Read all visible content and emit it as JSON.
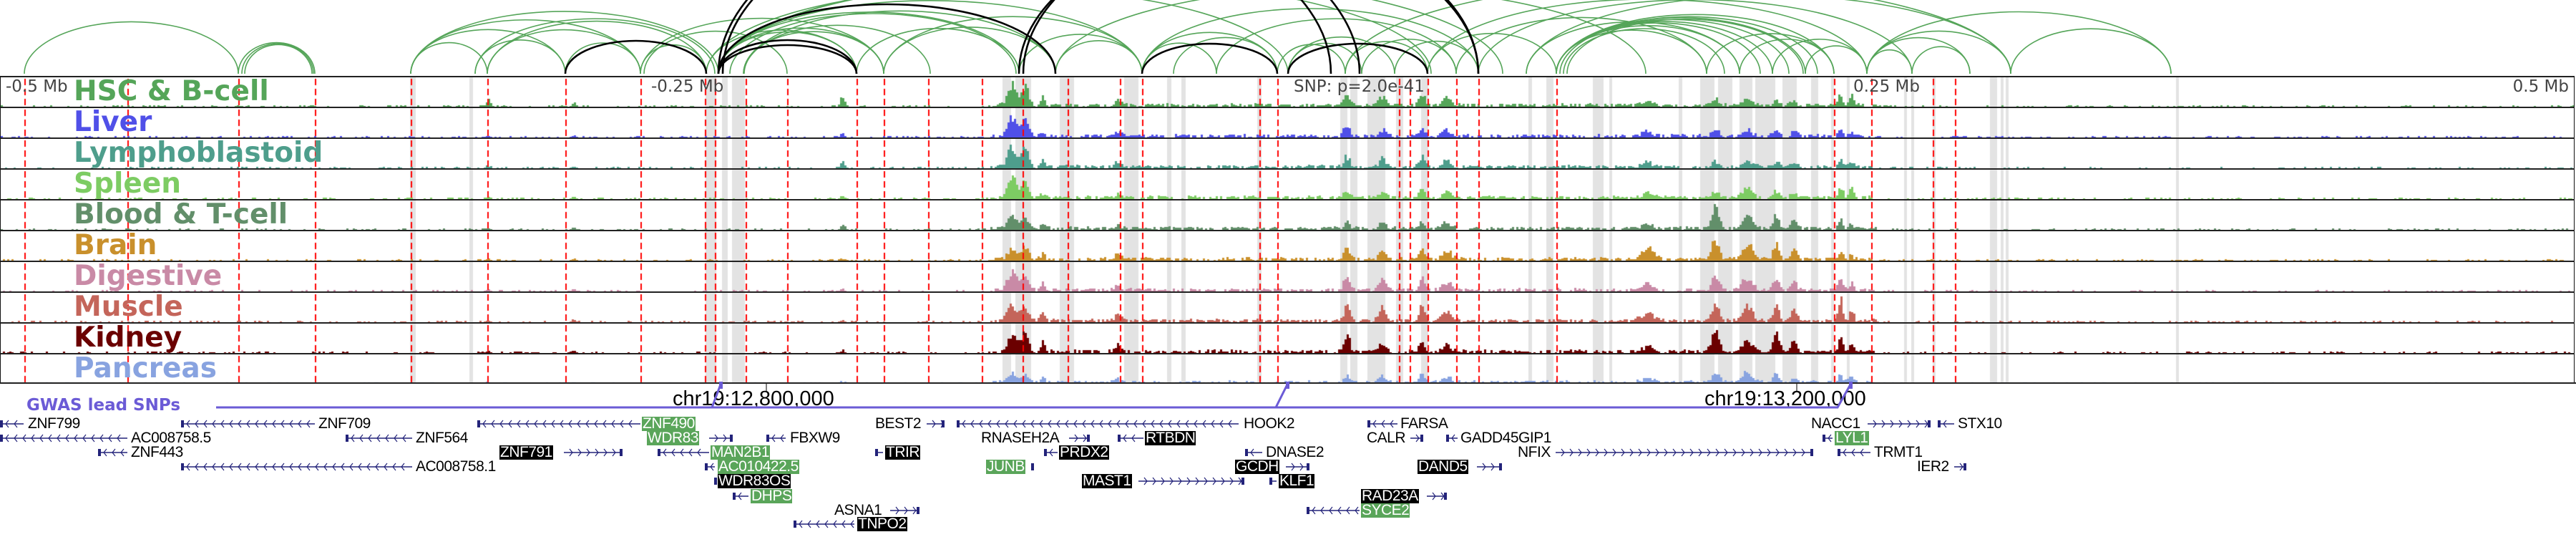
{
  "axis": {
    "left": "-0.5 Mb",
    "left_mid": "-0.25 Mb",
    "snp": "SNP: p=2.0e-41",
    "right_mid": "0.25 Mb",
    "right": "0.5 Mb"
  },
  "tracks": [
    {
      "name": "HSC & B-cell",
      "color": "#55a559"
    },
    {
      "name": "Liver",
      "color": "#5050e8"
    },
    {
      "name": "Lymphoblastoid",
      "color": "#4e9e8c"
    },
    {
      "name": "Spleen",
      "color": "#7dcc63"
    },
    {
      "name": "Blood & T-cell",
      "color": "#628f6a"
    },
    {
      "name": "Brain",
      "color": "#c9902c"
    },
    {
      "name": "Digestive",
      "color": "#c98aa6"
    },
    {
      "name": "Muscle",
      "color": "#c4655a"
    },
    {
      "name": "Kidney",
      "color": "#6b0000"
    },
    {
      "name": "Pancreas",
      "color": "#88a3e0"
    }
  ],
  "gwas": {
    "label": "GWAS lead SNPs",
    "color": "#6b5bd6"
  },
  "coordinates": [
    "chr19:12,800,000",
    "chr19:13,200,000"
  ],
  "colors": {
    "loop": "#55a559",
    "loop_strong": "#000000",
    "snp_line": "#ff0000",
    "gene": "#23237a",
    "highlight_green": "#5aa55a"
  },
  "genes": [
    {
      "label": "ZNF799",
      "highlight": "none"
    },
    {
      "label": "AC008758.5",
      "highlight": "none"
    },
    {
      "label": "ZNF443",
      "highlight": "none"
    },
    {
      "label": "ZNF709",
      "highlight": "none"
    },
    {
      "label": "ZNF564",
      "highlight": "none"
    },
    {
      "label": "AC008758.1",
      "highlight": "none"
    },
    {
      "label": "ZNF490",
      "highlight": "green"
    },
    {
      "label": "WDR83",
      "highlight": "green"
    },
    {
      "label": "ZNF791",
      "highlight": "black"
    },
    {
      "label": "MAN2B1",
      "highlight": "green"
    },
    {
      "label": "AC010422.5",
      "highlight": "green"
    },
    {
      "label": "WDR83OS",
      "highlight": "black"
    },
    {
      "label": "DHPS",
      "highlight": "green"
    },
    {
      "label": "FBXW9",
      "highlight": "none"
    },
    {
      "label": "BEST2",
      "highlight": "none"
    },
    {
      "label": "TRIR",
      "highlight": "black"
    },
    {
      "label": "ASNA1",
      "highlight": "none"
    },
    {
      "label": "TNPO2",
      "highlight": "black"
    },
    {
      "label": "HOOK2",
      "highlight": "none"
    },
    {
      "label": "RNASEH2A",
      "highlight": "none"
    },
    {
      "label": "RTBDN",
      "highlight": "black"
    },
    {
      "label": "PRDX2",
      "highlight": "black"
    },
    {
      "label": "JUNB",
      "highlight": "green"
    },
    {
      "label": "MAST1",
      "highlight": "black"
    },
    {
      "label": "DNASE2",
      "highlight": "none"
    },
    {
      "label": "GCDH",
      "highlight": "black"
    },
    {
      "label": "KLF1",
      "highlight": "black"
    },
    {
      "label": "FARSA",
      "highlight": "none"
    },
    {
      "label": "CALR",
      "highlight": "none"
    },
    {
      "label": "GADD45GIP1",
      "highlight": "none"
    },
    {
      "label": "NFIX",
      "highlight": "none"
    },
    {
      "label": "DAND5",
      "highlight": "black"
    },
    {
      "label": "RAD23A",
      "highlight": "black"
    },
    {
      "label": "SYCE2",
      "highlight": "green"
    },
    {
      "label": "NACC1",
      "highlight": "none"
    },
    {
      "label": "STX10",
      "highlight": "none"
    },
    {
      "label": "LYL1",
      "highlight": "green"
    },
    {
      "label": "TRMT1",
      "highlight": "none"
    },
    {
      "label": "IER2",
      "highlight": "none"
    }
  ]
}
